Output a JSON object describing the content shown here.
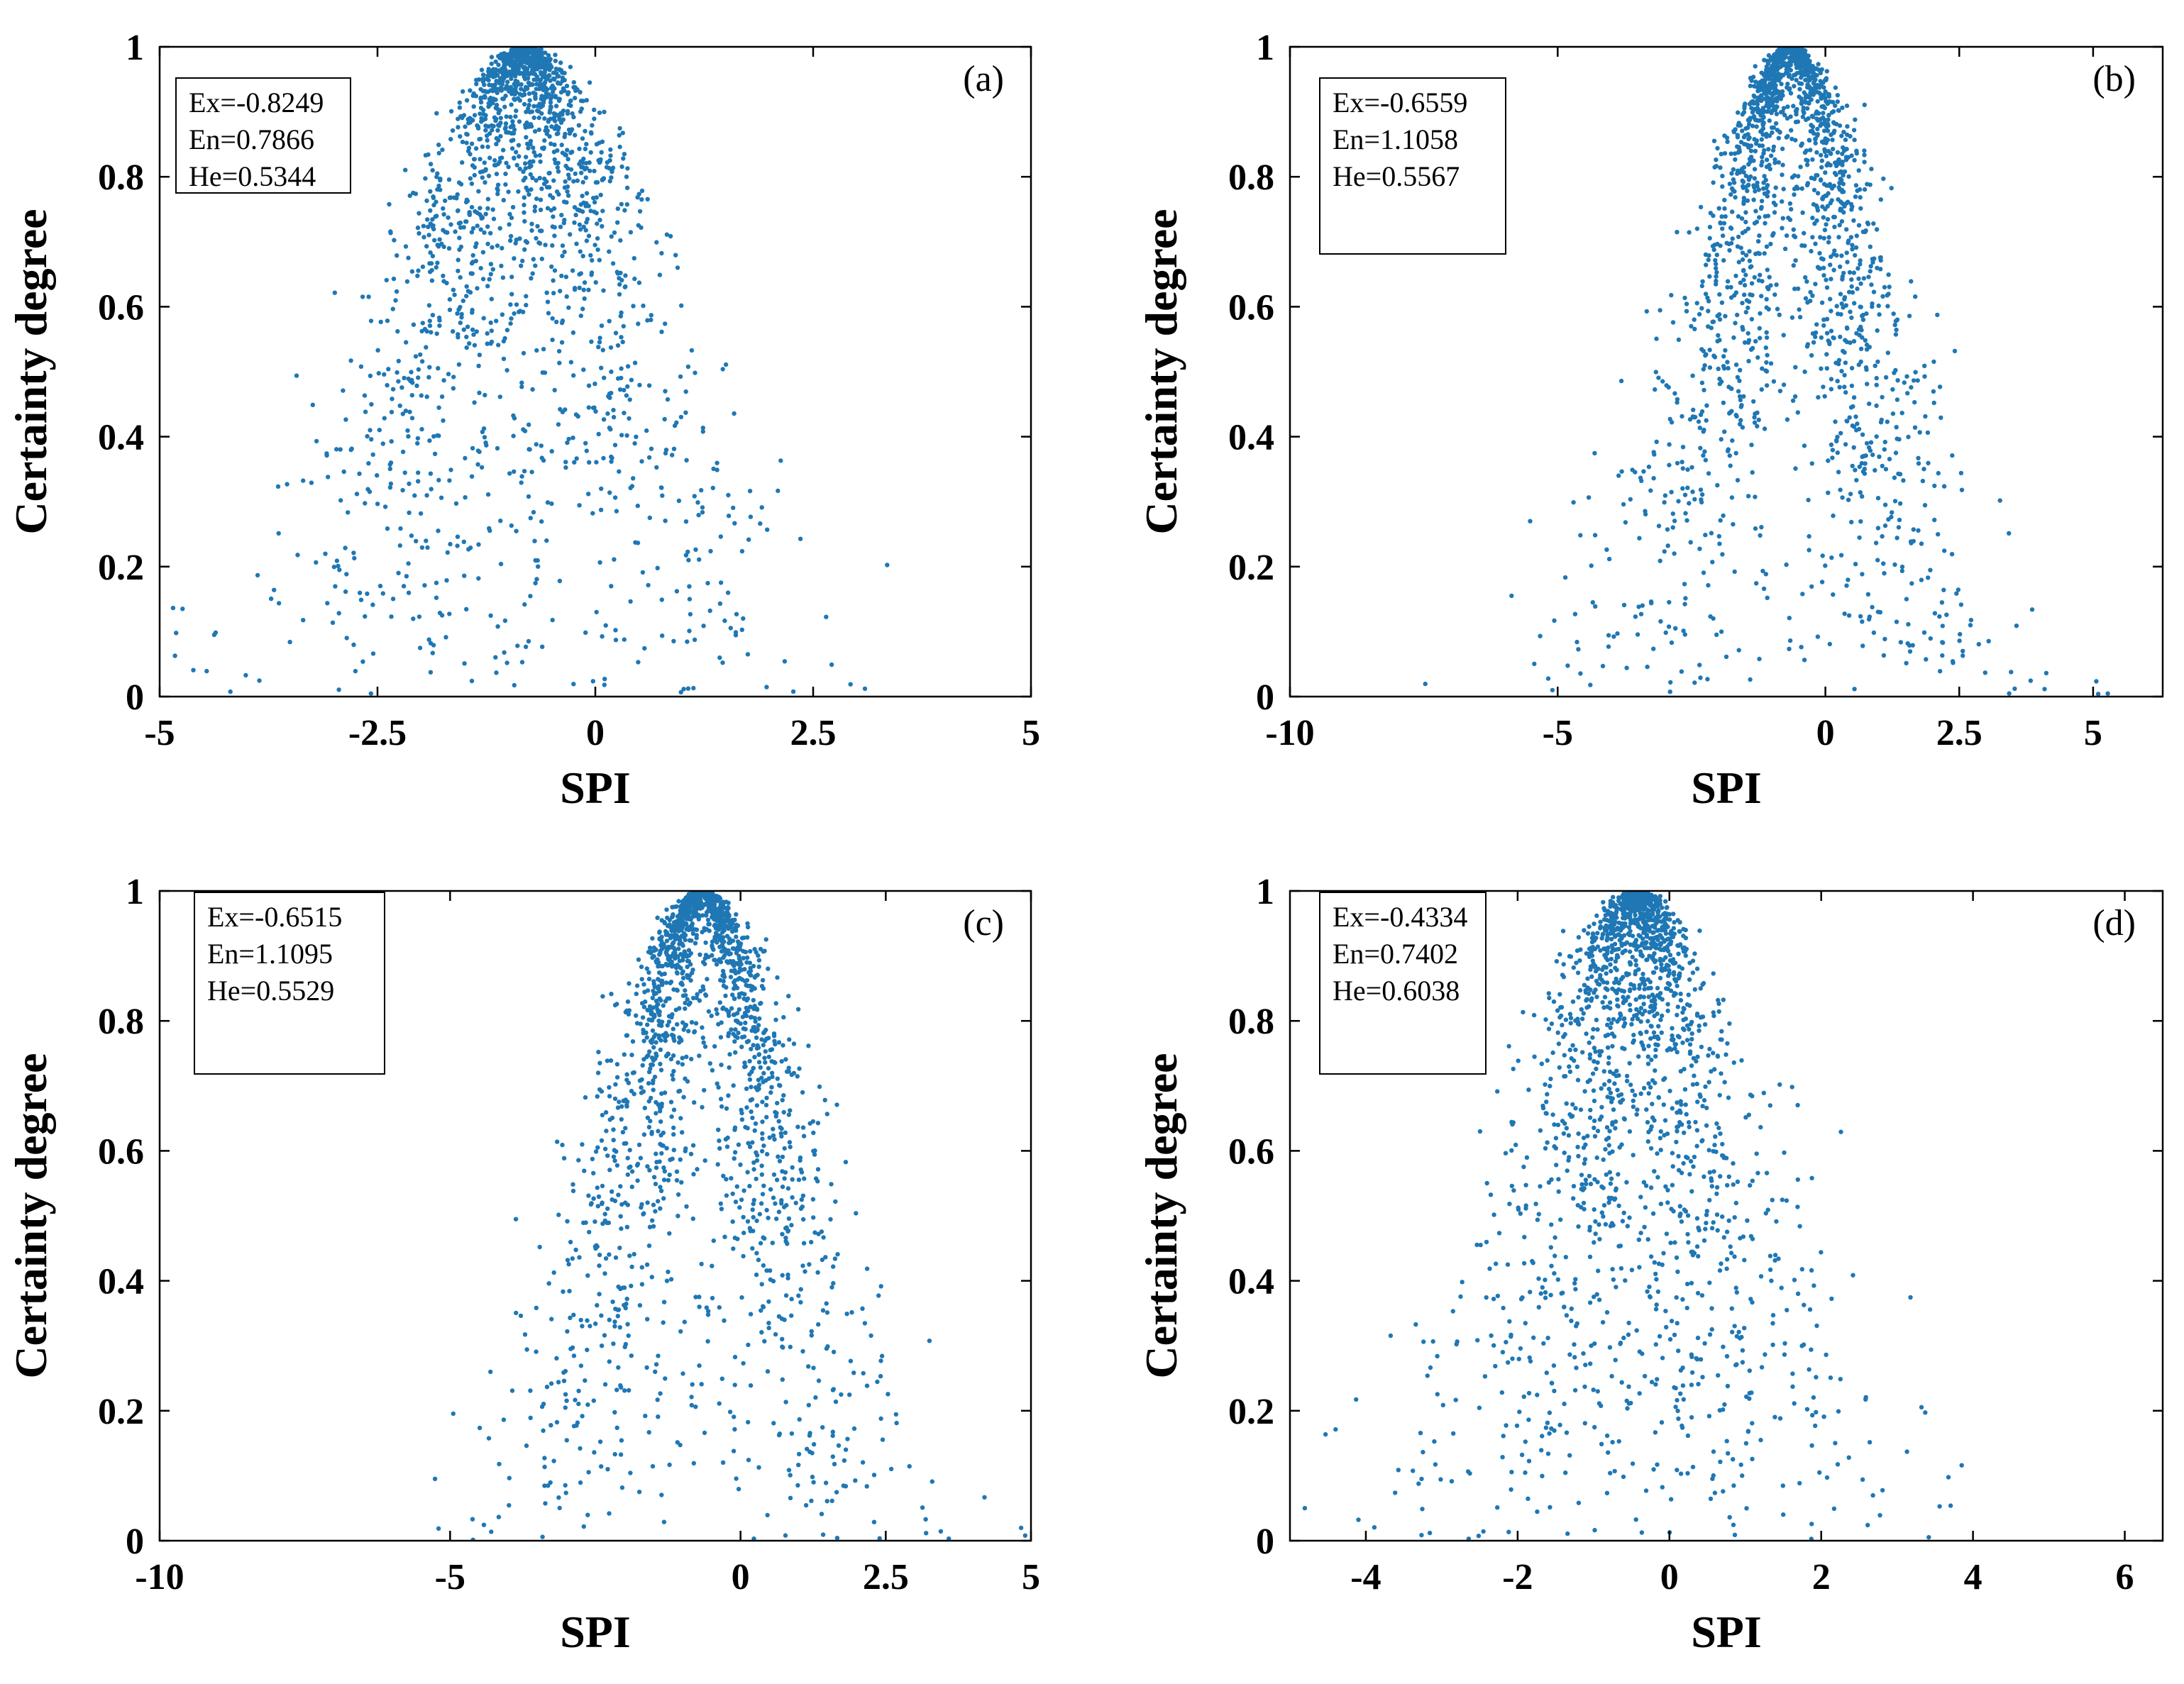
{
  "chart_data": [
    {
      "type": "scatter",
      "panel_label": "(a)",
      "xlabel": "SPI",
      "ylabel": "Certainty degree",
      "xlim": [
        -5,
        5
      ],
      "ylim": [
        0,
        1
      ],
      "xticks": [
        -5,
        -2.5,
        0,
        2.5,
        5
      ],
      "xtick_labels": [
        "-5",
        "-2.5",
        "0",
        "2.5",
        "5"
      ],
      "yticks": [
        0,
        0.2,
        0.4,
        0.6,
        0.8,
        1
      ],
      "ytick_labels": [
        "0",
        "0.2",
        "0.4",
        "0.6",
        "0.8",
        "1"
      ],
      "params": {
        "Ex": -0.8249,
        "En": 0.7866,
        "He": 0.5344
      },
      "param_labels": [
        "Ex=-0.8249",
        "En=0.7866",
        "He=0.5344"
      ],
      "legend_position": "top-left",
      "n_drops": 2000,
      "point_color": "#1f77b4",
      "seed": 11
    },
    {
      "type": "scatter",
      "panel_label": "(b)",
      "xlabel": "SPI",
      "ylabel": "Certainty degree",
      "xlim": [
        -10,
        6.3
      ],
      "ylim": [
        0,
        1
      ],
      "xticks": [
        -10,
        -5,
        0,
        2.5,
        5
      ],
      "xtick_labels": [
        "-10",
        "-5",
        "0",
        "2.5",
        "5"
      ],
      "yticks": [
        0,
        0.2,
        0.4,
        0.6,
        0.8,
        1
      ],
      "ytick_labels": [
        "0",
        "0.2",
        "0.4",
        "0.6",
        "0.8",
        "1"
      ],
      "params": {
        "Ex": -0.6559,
        "En": 1.1058,
        "He": 0.5567
      },
      "param_labels": [
        "Ex=-0.6559",
        "En=1.1058",
        "He=0.5567"
      ],
      "legend_position": "top-left",
      "n_drops": 2000,
      "point_color": "#1f77b4",
      "seed": 23
    },
    {
      "type": "scatter",
      "panel_label": "(c)",
      "xlabel": "SPI",
      "ylabel": "Certainty degree",
      "xlim": [
        -10,
        5
      ],
      "ylim": [
        0,
        1
      ],
      "xticks": [
        -10,
        -5,
        0,
        2.5,
        5
      ],
      "xtick_labels": [
        "-10",
        "-5",
        "0",
        "2.5",
        "5"
      ],
      "yticks": [
        0,
        0.2,
        0.4,
        0.6,
        0.8,
        1
      ],
      "ytick_labels": [
        "0",
        "0.2",
        "0.4",
        "0.6",
        "0.8",
        "1"
      ],
      "params": {
        "Ex": -0.6515,
        "En": 1.1095,
        "He": 0.5529
      },
      "param_labels": [
        "Ex=-0.6515",
        "En=1.1095",
        "He=0.5529"
      ],
      "legend_position": "top-left",
      "n_drops": 2000,
      "point_color": "#1f77b4",
      "seed": 37
    },
    {
      "type": "scatter",
      "panel_label": "(d)",
      "xlabel": "SPI",
      "ylabel": "Certainty degree",
      "xlim": [
        -5,
        6.5
      ],
      "ylim": [
        0,
        1
      ],
      "xticks": [
        -4,
        -2,
        0,
        2,
        4,
        6
      ],
      "xtick_labels": [
        "-4",
        "-2",
        "0",
        "2",
        "4",
        "6"
      ],
      "yticks": [
        0,
        0.2,
        0.4,
        0.6,
        0.8,
        1
      ],
      "ytick_labels": [
        "0",
        "0.2",
        "0.4",
        "0.6",
        "0.8",
        "1"
      ],
      "params": {
        "Ex": -0.4334,
        "En": 0.7402,
        "He": 0.6038
      },
      "param_labels": [
        "Ex=-0.4334",
        "En=0.7402",
        "He=0.6038"
      ],
      "legend_position": "top-left",
      "n_drops": 2000,
      "point_color": "#1f77b4",
      "seed": 53
    }
  ]
}
